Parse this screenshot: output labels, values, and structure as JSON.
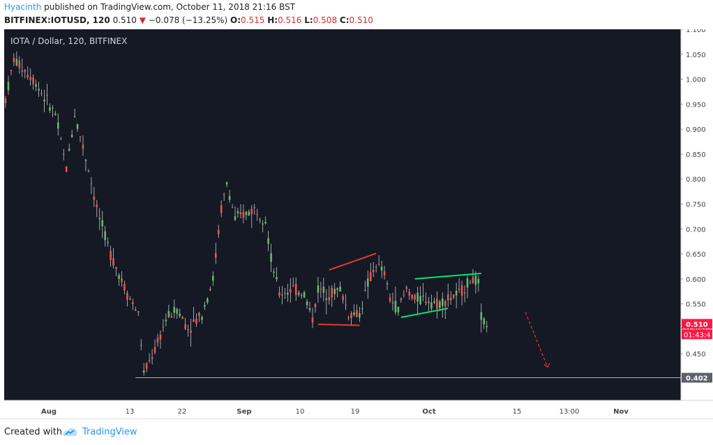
{
  "header": {
    "author": "Hyacinth",
    "published_text": "published on TradingView.com, October 11, 2018 21:16 BST",
    "symbol": "BITFINEX:IOTUSD, 120",
    "last": "0.510",
    "change_arrow": "▼",
    "change": "−0.078 (−13.25%)",
    "o_label": "O:",
    "o_value": "0.515",
    "h_label": "H:",
    "h_value": "0.516",
    "l_label": "L:",
    "l_value": "0.508",
    "c_label": "C:",
    "c_value": "0.510"
  },
  "footer": {
    "created_with": "Created with",
    "brand": "TradingView"
  },
  "chart_data": {
    "type": "candlestick",
    "title": "IOTA / Dollar, 120, BITFINEX",
    "x_ticks": [
      "Aug",
      "13",
      "22",
      "Sep",
      "10",
      "19",
      "Oct",
      "15",
      "13:00",
      "Nov"
    ],
    "y_ticks": [
      "0.450",
      "0.500",
      "0.550",
      "0.600",
      "0.650",
      "0.700",
      "0.750",
      "0.800",
      "0.850",
      "0.900",
      "0.950",
      "1.000",
      "1.050",
      "1.100"
    ],
    "y_range": [
      0.393,
      1.1
    ],
    "price_anchors": [
      {
        "i": 0,
        "p": 0.96
      },
      {
        "i": 3,
        "p": 1.04
      },
      {
        "i": 10,
        "p": 1.0
      },
      {
        "i": 18,
        "p": 0.93
      },
      {
        "i": 22,
        "p": 0.82
      },
      {
        "i": 25,
        "p": 0.93
      },
      {
        "i": 30,
        "p": 0.82
      },
      {
        "i": 33,
        "p": 0.74
      },
      {
        "i": 38,
        "p": 0.65
      },
      {
        "i": 44,
        "p": 0.57
      },
      {
        "i": 48,
        "p": 0.53
      },
      {
        "i": 50,
        "p": 0.41
      },
      {
        "i": 55,
        "p": 0.47
      },
      {
        "i": 58,
        "p": 0.52
      },
      {
        "i": 62,
        "p": 0.54
      },
      {
        "i": 66,
        "p": 0.5
      },
      {
        "i": 71,
        "p": 0.53
      },
      {
        "i": 75,
        "p": 0.6
      },
      {
        "i": 78,
        "p": 0.74
      },
      {
        "i": 80,
        "p": 0.79
      },
      {
        "i": 83,
        "p": 0.72
      },
      {
        "i": 90,
        "p": 0.74
      },
      {
        "i": 94,
        "p": 0.72
      },
      {
        "i": 96,
        "p": 0.64
      },
      {
        "i": 99,
        "p": 0.57
      },
      {
        "i": 104,
        "p": 0.58
      },
      {
        "i": 108,
        "p": 0.57
      },
      {
        "i": 111,
        "p": 0.52
      },
      {
        "i": 113,
        "p": 0.58
      },
      {
        "i": 117,
        "p": 0.57
      },
      {
        "i": 121,
        "p": 0.58
      },
      {
        "i": 124,
        "p": 0.53
      },
      {
        "i": 128,
        "p": 0.53
      },
      {
        "i": 131,
        "p": 0.59
      },
      {
        "i": 134,
        "p": 0.63
      },
      {
        "i": 137,
        "p": 0.61
      },
      {
        "i": 139,
        "p": 0.56
      },
      {
        "i": 142,
        "p": 0.54
      },
      {
        "i": 145,
        "p": 0.58
      },
      {
        "i": 148,
        "p": 0.56
      },
      {
        "i": 152,
        "p": 0.56
      },
      {
        "i": 156,
        "p": 0.55
      },
      {
        "i": 160,
        "p": 0.56
      },
      {
        "i": 164,
        "p": 0.57
      },
      {
        "i": 167,
        "p": 0.59
      },
      {
        "i": 169,
        "p": 0.6
      },
      {
        "i": 171,
        "p": 0.59
      },
      {
        "i": 172,
        "p": 0.52
      },
      {
        "i": 174,
        "p": 0.51
      }
    ],
    "n_bars": 175,
    "trendlines": [
      {
        "color": "#e53935",
        "i1": 117,
        "p1": 0.618,
        "i2": 134,
        "p2": 0.651
      },
      {
        "color": "#e53935",
        "i1": 113,
        "p1": 0.509,
        "i2": 128,
        "p2": 0.507
      },
      {
        "color": "#00e676",
        "i1": 148,
        "p1": 0.6,
        "i2": 172,
        "p2": 0.611
      },
      {
        "color": "#00e676",
        "i1": 143,
        "p1": 0.523,
        "i2": 160,
        "p2": 0.541
      }
    ],
    "projection": {
      "color": "#e53935",
      "i1": 188,
      "p1": 0.533,
      "i2": 196,
      "p2": 0.423
    },
    "support_line": {
      "price": 0.402,
      "label": "0.402"
    },
    "last_price_label": "0.510",
    "countdown_label": "01:43:4"
  }
}
